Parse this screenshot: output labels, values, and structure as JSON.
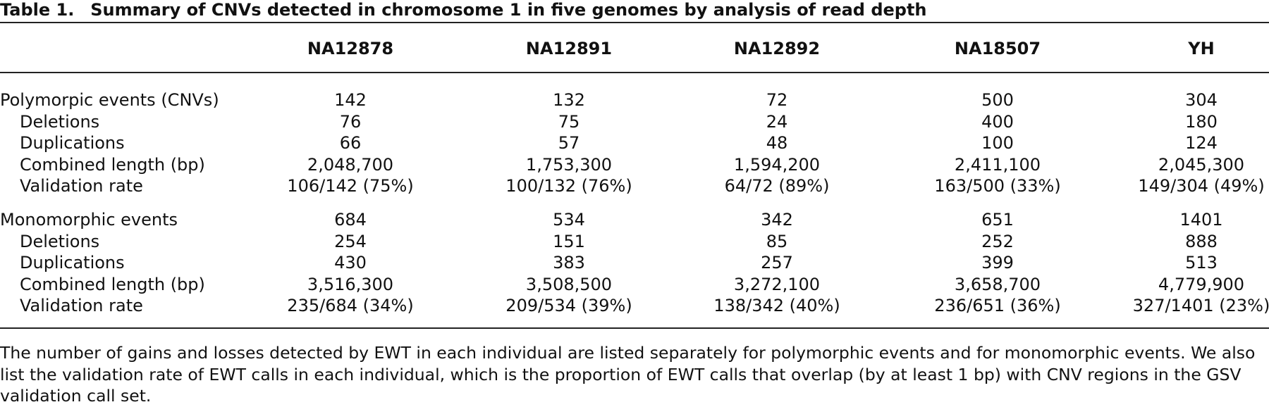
{
  "table": {
    "label": "Table 1.",
    "title": "Summary of CNVs detected in chromosome 1 in five genomes by analysis of read depth",
    "columns": [
      "NA12878",
      "NA12891",
      "NA12892",
      "NA18507",
      "YH"
    ],
    "sections": [
      {
        "rows": [
          [
            "Polymorpic events (CNVs)",
            "142",
            "132",
            "72",
            "500",
            "304"
          ],
          [
            "Deletions",
            "76",
            "75",
            "24",
            "400",
            "180"
          ],
          [
            "Duplications",
            "66",
            "57",
            "48",
            "100",
            "124"
          ],
          [
            "Combined length (bp)",
            "2,048,700",
            "1,753,300",
            "1,594,200",
            "2,411,100",
            "2,045,300"
          ],
          [
            "Validation rate",
            "106/142 (75%)",
            "100/132 (76%)",
            "64/72 (89%)",
            "163/500 (33%)",
            "149/304 (49%)"
          ]
        ]
      },
      {
        "rows": [
          [
            "Monomorphic events",
            "684",
            "534",
            "342",
            "651",
            "1401"
          ],
          [
            "Deletions",
            "254",
            "151",
            "85",
            "252",
            "888"
          ],
          [
            "Duplications",
            "430",
            "383",
            "257",
            "399",
            "513"
          ],
          [
            "Combined length (bp)",
            "3,516,300",
            "3,508,500",
            "3,272,100",
            "3,658,700",
            "4,779,900"
          ],
          [
            "Validation rate",
            "235/684 (34%)",
            "209/534 (39%)",
            "138/342 (40%)",
            "236/651 (36%)",
            "327/1401 (23%)"
          ]
        ]
      }
    ]
  },
  "footnote": "The number of gains and losses detected by EWT in each individual are listed separately for polymorphic events and for monomorphic events. We also list the validation rate of EWT calls in each individual, which is the proportion of EWT calls that overlap (by at least 1 bp) with CNV regions in the GSV validation call set."
}
